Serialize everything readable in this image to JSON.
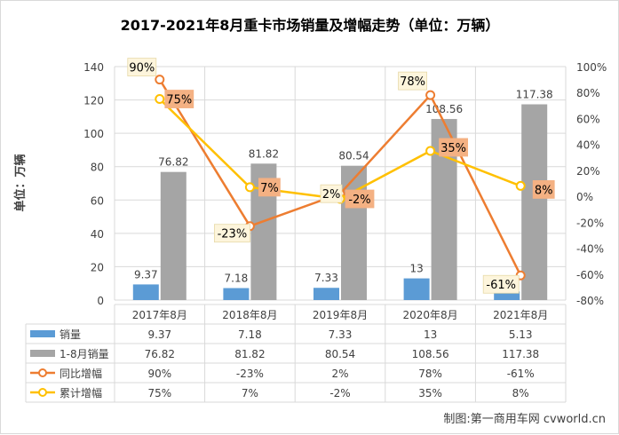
{
  "chart_data": {
    "type": "bar",
    "title": "2017-2021年8月重卡市场销量及增幅走势（单位：万辆）",
    "ylabel": "单位：万辆",
    "categories": [
      "2017年8月",
      "2018年8月",
      "2019年8月",
      "2020年8月",
      "2021年8月"
    ],
    "ylim": [
      0,
      140
    ],
    "y_ticks": [
      "0",
      "20",
      "40",
      "60",
      "80",
      "100",
      "120",
      "140"
    ],
    "y2lim": [
      -80,
      100
    ],
    "y2_ticks": [
      "-80%",
      "-60%",
      "-40%",
      "-20%",
      "0%",
      "20%",
      "40%",
      "60%",
      "80%",
      "100%"
    ],
    "grid": true,
    "legend": "data-table",
    "series": [
      {
        "name": "销量",
        "kind": "bar",
        "axis": "left",
        "color": "#5b9bd5",
        "values": [
          9.37,
          7.18,
          7.33,
          13,
          5.13
        ],
        "labels": [
          "9.37",
          "7.18",
          "7.33",
          "13",
          "5.13"
        ]
      },
      {
        "name": "1-8月销量",
        "kind": "bar",
        "axis": "left",
        "color": "#a5a5a5",
        "values": [
          76.82,
          81.82,
          80.54,
          108.56,
          117.38
        ],
        "labels": [
          "76.82",
          "81.82",
          "80.54",
          "108.56",
          "117.38"
        ]
      },
      {
        "name": "同比增幅",
        "kind": "line",
        "axis": "right",
        "color": "#ed7d31",
        "values": [
          90,
          -23,
          2,
          78,
          -61
        ],
        "labels": [
          "90%",
          "-23%",
          "2%",
          "78%",
          "-61%"
        ]
      },
      {
        "name": "累计增幅",
        "kind": "line",
        "axis": "right",
        "color": "#ffc000",
        "values": [
          75,
          7,
          -2,
          35,
          8
        ],
        "labels": [
          "75%",
          "7%",
          "-2%",
          "35%",
          "8%"
        ]
      }
    ]
  },
  "credit": "制图:第一商用车网 cvworld.cn"
}
